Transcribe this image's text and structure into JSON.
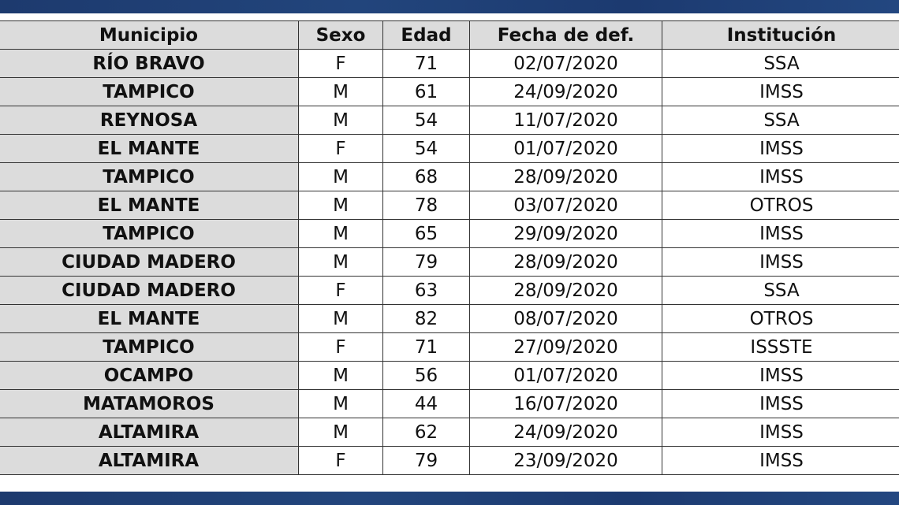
{
  "table": {
    "headers": [
      "Municipio",
      "Sexo",
      "Edad",
      "Fecha de def.",
      "Institución"
    ],
    "rows": [
      [
        "RÍO BRAVO",
        "F",
        "71",
        "02/07/2020",
        "SSA"
      ],
      [
        "TAMPICO",
        "M",
        "61",
        "24/09/2020",
        "IMSS"
      ],
      [
        "REYNOSA",
        "M",
        "54",
        "11/07/2020",
        "SSA"
      ],
      [
        "EL MANTE",
        "F",
        "54",
        "01/07/2020",
        "IMSS"
      ],
      [
        "TAMPICO",
        "M",
        "68",
        "28/09/2020",
        "IMSS"
      ],
      [
        "EL MANTE",
        "M",
        "78",
        "03/07/2020",
        "OTROS"
      ],
      [
        "TAMPICO",
        "M",
        "65",
        "29/09/2020",
        "IMSS"
      ],
      [
        "CIUDAD MADERO",
        "M",
        "79",
        "28/09/2020",
        "IMSS"
      ],
      [
        "CIUDAD MADERO",
        "F",
        "63",
        "28/09/2020",
        "SSA"
      ],
      [
        "EL MANTE",
        "M",
        "82",
        "08/07/2020",
        "OTROS"
      ],
      [
        "TAMPICO",
        "F",
        "71",
        "27/09/2020",
        "ISSSTE"
      ],
      [
        "OCAMPO",
        "M",
        "56",
        "01/07/2020",
        "IMSS"
      ],
      [
        "MATAMOROS",
        "M",
        "44",
        "16/07/2020",
        "IMSS"
      ],
      [
        "ALTAMIRA",
        "M",
        "62",
        "24/09/2020",
        "IMSS"
      ],
      [
        "ALTAMIRA",
        "F",
        "79",
        "23/09/2020",
        "IMSS"
      ]
    ]
  },
  "colors": {
    "band": "#1f3f74",
    "header_bg": "#dcdcdc"
  }
}
